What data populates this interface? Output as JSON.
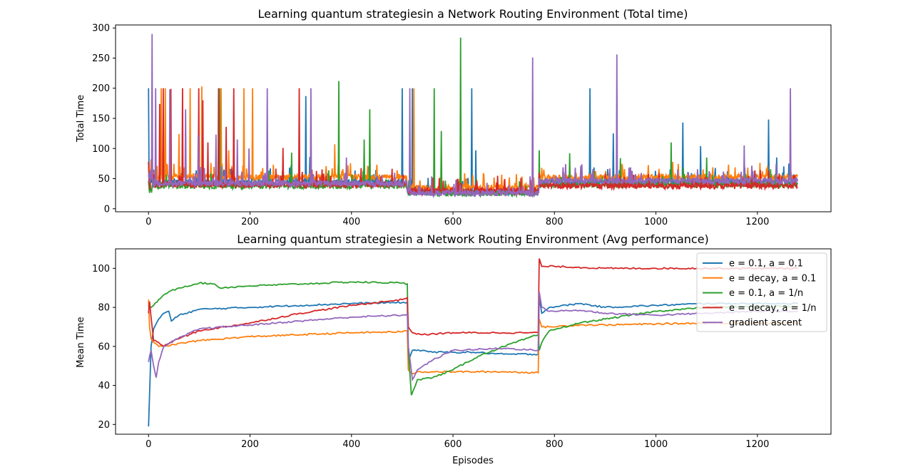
{
  "chart_data": [
    {
      "type": "line",
      "title": "Learning quantum strategiesin a Network Routing Environment (Total time)",
      "xlabel": "",
      "ylabel": "Total Time",
      "xlim": [
        -65,
        1345
      ],
      "ylim": [
        -5,
        305
      ],
      "xticks": [
        0,
        200,
        400,
        600,
        800,
        1000,
        1200
      ],
      "yticks": [
        0,
        50,
        100,
        150,
        200,
        250,
        300
      ],
      "grid": false,
      "legend": null,
      "episodes": 1280,
      "series": [
        {
          "color": "#1f77b4",
          "segments": [
            {
              "x": [
                0,
                510
              ],
              "level": 44
            },
            {
              "x": [
                510,
                770
              ],
              "level": 28
            },
            {
              "x": [
                770,
                1280
              ],
              "level": 44
            }
          ],
          "spikes": [
            [
              0,
              200
            ],
            [
              310,
              187
            ],
            [
              318,
              86
            ],
            [
              500,
              200
            ],
            [
              520,
              200
            ],
            [
              637,
              200
            ],
            [
              645,
              97
            ],
            [
              870,
              200
            ],
            [
              916,
              125
            ],
            [
              1053,
              143
            ],
            [
              1088,
              104
            ],
            [
              1222,
              148
            ],
            [
              1238,
              85
            ],
            [
              1262,
              75
            ]
          ]
        },
        {
          "color": "#ff7f0e",
          "segments": [
            {
              "x": [
                0,
                510
              ],
              "level": 52
            },
            {
              "x": [
                510,
                770
              ],
              "level": 35
            },
            {
              "x": [
                770,
                1280
              ],
              "level": 52
            }
          ],
          "spikes": [
            [
              25,
              200
            ],
            [
              33,
              200
            ],
            [
              60,
              124
            ],
            [
              82,
              200
            ],
            [
              105,
              203
            ],
            [
              143,
              200
            ],
            [
              158,
              97
            ],
            [
              188,
              200
            ],
            [
              205,
              200
            ],
            [
              367,
              107
            ],
            [
              523,
              200
            ],
            [
              770,
              55
            ],
            [
              1210,
              62
            ]
          ]
        },
        {
          "color": "#2ca02c",
          "segments": [
            {
              "x": [
                0,
                510
              ],
              "level": 38
            },
            {
              "x": [
                510,
                770
              ],
              "level": 26
            },
            {
              "x": [
                770,
                1280
              ],
              "level": 40
            }
          ],
          "spikes": [
            [
              140,
              200
            ],
            [
              282,
              93
            ],
            [
              375,
              212
            ],
            [
              425,
              115
            ],
            [
              436,
              165
            ],
            [
              563,
              200
            ],
            [
              577,
              129
            ],
            [
              615,
              284
            ],
            [
              770,
              97
            ],
            [
              830,
              92
            ],
            [
              930,
              84
            ],
            [
              1030,
              110
            ],
            [
              1100,
              85
            ]
          ]
        },
        {
          "color": "#d62728",
          "segments": [
            {
              "x": [
                0,
                510
              ],
              "level": 40
            },
            {
              "x": [
                510,
                770
              ],
              "level": 30
            },
            {
              "x": [
                770,
                1280
              ],
              "level": 38
            }
          ],
          "spikes": [
            [
              22,
              174
            ],
            [
              29,
              200
            ],
            [
              44,
              199
            ],
            [
              67,
              200
            ],
            [
              99,
              200
            ],
            [
              107,
              180
            ],
            [
              117,
              110
            ],
            [
              138,
              200
            ],
            [
              153,
              136
            ],
            [
              168,
              200
            ],
            [
              265,
              101
            ],
            [
              297,
              200
            ],
            [
              770,
              60
            ]
          ]
        },
        {
          "color": "#9467bd",
          "segments": [
            {
              "x": [
                0,
                510
              ],
              "level": 42
            },
            {
              "x": [
                510,
                770
              ],
              "level": 26
            },
            {
              "x": [
                770,
                1280
              ],
              "level": 46
            }
          ],
          "spikes": [
            [
              7,
              290
            ],
            [
              14,
              200
            ],
            [
              42,
              198
            ],
            [
              73,
              165
            ],
            [
              98,
              122
            ],
            [
              133,
              123
            ],
            [
              175,
              115
            ],
            [
              198,
              100
            ],
            [
              234,
              200
            ],
            [
              320,
              200
            ],
            [
              390,
              85
            ],
            [
              515,
              200
            ],
            [
              757,
              251
            ],
            [
              923,
              256
            ],
            [
              1174,
              105
            ],
            [
              1265,
              200
            ]
          ]
        }
      ]
    },
    {
      "type": "line",
      "title": "Learning quantum strategiesin a Network Routing Environment (Avg performance)",
      "xlabel": "Episodes",
      "ylabel": "Mean Time",
      "xlim": [
        -65,
        1345
      ],
      "ylim": [
        15,
        110
      ],
      "xticks": [
        0,
        200,
        400,
        600,
        800,
        1000,
        1200
      ],
      "yticks": [
        20,
        40,
        60,
        80,
        100
      ],
      "grid": false,
      "legend": "top-right",
      "series": [
        {
          "name": "e = 0.1, a = 0.1",
          "color": "#1f77b4",
          "x": [
            0,
            2,
            5,
            10,
            20,
            30,
            40,
            45,
            60,
            100,
            200,
            300,
            400,
            500,
            510,
            512,
            520,
            540,
            560,
            600,
            640,
            700,
            768,
            770,
            775,
            790,
            850,
            900,
            1000,
            1100,
            1200,
            1280
          ],
          "y": [
            19,
            35,
            60,
            69,
            74,
            77,
            78,
            73,
            76,
            79,
            80,
            81,
            82,
            82.5,
            82.5,
            52,
            58,
            58,
            57,
            57,
            57,
            56,
            56,
            85,
            77,
            80,
            82,
            80,
            81,
            82,
            82,
            82
          ]
        },
        {
          "name": "e = decay, a = 0.1",
          "color": "#ff7f0e",
          "x": [
            0,
            2,
            5,
            10,
            20,
            30,
            50,
            100,
            200,
            300,
            400,
            500,
            510,
            512,
            520,
            530,
            560,
            600,
            700,
            768,
            770,
            775,
            790,
            850,
            900,
            1000,
            1100,
            1200,
            1280
          ],
          "y": [
            84,
            70,
            64,
            62,
            60,
            60,
            61,
            63,
            65,
            66,
            67,
            67.5,
            68,
            48,
            46,
            47,
            47,
            47,
            47,
            46.5,
            74,
            70,
            70,
            71,
            71,
            71.5,
            72,
            72,
            72
          ]
        },
        {
          "name": "e = 0.1, a = 1/n",
          "color": "#2ca02c",
          "x": [
            0,
            2,
            5,
            10,
            20,
            40,
            60,
            100,
            130,
            140,
            200,
            300,
            400,
            500,
            510,
            512,
            518,
            530,
            560,
            600,
            650,
            700,
            768,
            770,
            775,
            790,
            850,
            900,
            950,
            1000,
            1100,
            1200,
            1280
          ],
          "y": [
            81,
            80,
            80,
            81,
            84,
            88,
            90,
            92.5,
            92,
            90,
            91,
            92,
            93,
            92.5,
            92,
            58,
            35,
            43,
            44,
            48,
            55,
            60,
            66,
            58,
            62,
            68,
            72,
            74,
            76,
            78,
            80,
            80.5,
            80.5
          ]
        },
        {
          "name": "e = decay, a = 1/n",
          "color": "#d62728",
          "x": [
            0,
            2,
            5,
            10,
            20,
            30,
            50,
            100,
            200,
            300,
            400,
            500,
            510,
            512,
            520,
            540,
            600,
            700,
            768,
            770,
            775,
            800,
            900,
            1000,
            1100,
            1200,
            1280
          ],
          "y": [
            77,
            83,
            75,
            63,
            62,
            60,
            63,
            68,
            72,
            77,
            81,
            84,
            85,
            70,
            67,
            66,
            67,
            67,
            67,
            105,
            101,
            101,
            100,
            100,
            100,
            100,
            100
          ]
        },
        {
          "name": "gradient ascent",
          "color": "#9467bd",
          "x": [
            0,
            2,
            5,
            10,
            15,
            20,
            30,
            50,
            100,
            200,
            300,
            400,
            500,
            510,
            512,
            520,
            530,
            560,
            600,
            700,
            768,
            770,
            775,
            790,
            850,
            900,
            1000,
            1100,
            1200,
            1280
          ],
          "y": [
            52,
            55,
            58,
            50,
            44,
            52,
            60,
            63,
            69,
            71,
            73,
            75,
            76,
            76.5,
            60,
            43,
            48,
            53,
            58,
            59,
            58,
            88,
            80,
            78,
            78.5,
            77,
            76,
            77,
            78,
            78
          ]
        }
      ]
    }
  ]
}
